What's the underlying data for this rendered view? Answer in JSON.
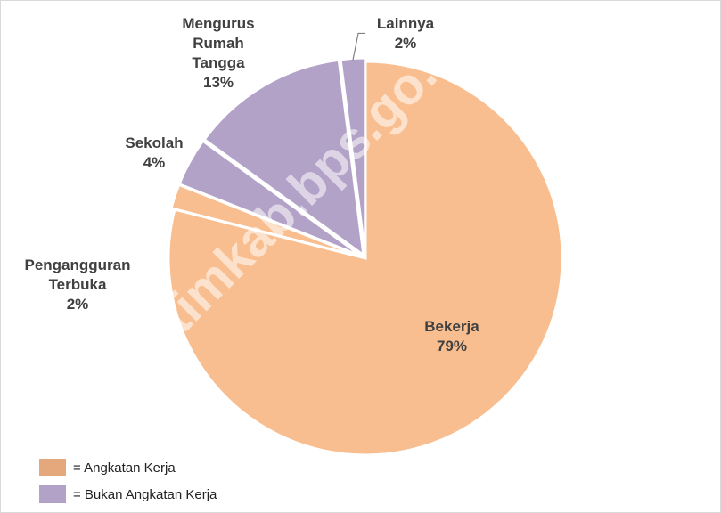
{
  "chart_data": {
    "type": "pie",
    "categories": [
      "Bekerja",
      "Pengangguran Terbuka",
      "Sekolah",
      "Mengurus Rumah Tangga",
      "Lainnya"
    ],
    "values": [
      79,
      2,
      4,
      13,
      2
    ],
    "value_labels": [
      "79%",
      "2%",
      "4%",
      "13%",
      "2%"
    ],
    "colors": [
      "#f9be8f",
      "#f9be8f",
      "#b3a2c7",
      "#b3a2c7",
      "#b3a2c7"
    ],
    "legend": [
      {
        "name": "= Angkatan Kerja",
        "color": "#e5a77c"
      },
      {
        "name": "= Bukan Angkatan Kerja",
        "color": "#b3a2c7"
      }
    ]
  },
  "watermark": "timkab.bps.go.id"
}
